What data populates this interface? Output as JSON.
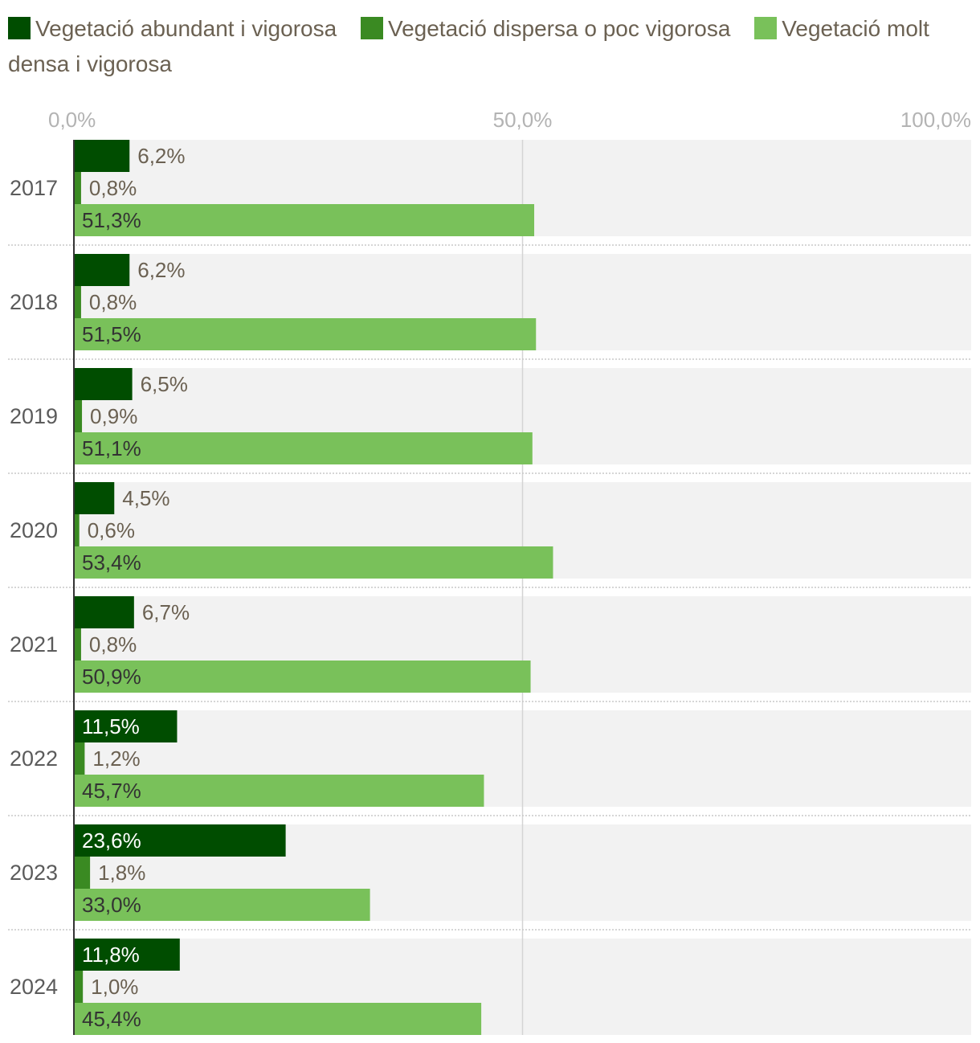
{
  "chart_data": {
    "type": "bar",
    "orientation": "horizontal",
    "categories": [
      "2017",
      "2018",
      "2019",
      "2020",
      "2021",
      "2022",
      "2023",
      "2024"
    ],
    "series": [
      {
        "name": "Vegetació abundant i vigorosa",
        "color": "#004d00",
        "values": [
          6.2,
          6.2,
          6.5,
          4.5,
          6.7,
          11.5,
          23.6,
          11.8
        ],
        "labels": [
          "6,2%",
          "6,2%",
          "6,5%",
          "4,5%",
          "6,7%",
          "11,5%",
          "23,6%",
          "11,8%"
        ]
      },
      {
        "name": "Vegetació dispersa o poc vigorosa",
        "color": "#3a8a22",
        "values": [
          0.8,
          0.8,
          0.9,
          0.6,
          0.8,
          1.2,
          1.8,
          1.0
        ],
        "labels": [
          "0,8%",
          "0,8%",
          "0,9%",
          "0,6%",
          "0,8%",
          "1,2%",
          "1,8%",
          "1,0%"
        ]
      },
      {
        "name": "Vegetació molt densa i vigorosa",
        "color": "#79c15a",
        "values": [
          51.3,
          51.5,
          51.1,
          53.4,
          50.9,
          45.7,
          33.0,
          45.4
        ],
        "labels": [
          "51,3%",
          "51,5%",
          "51,1%",
          "53,4%",
          "50,9%",
          "45,7%",
          "33,0%",
          "45,4%"
        ]
      }
    ],
    "xlim": [
      0,
      100
    ],
    "xticks": [
      0,
      50,
      100
    ],
    "xtick_labels": [
      "0,0%",
      "50,0%",
      "100,0%"
    ],
    "legend_position": "top-left"
  }
}
